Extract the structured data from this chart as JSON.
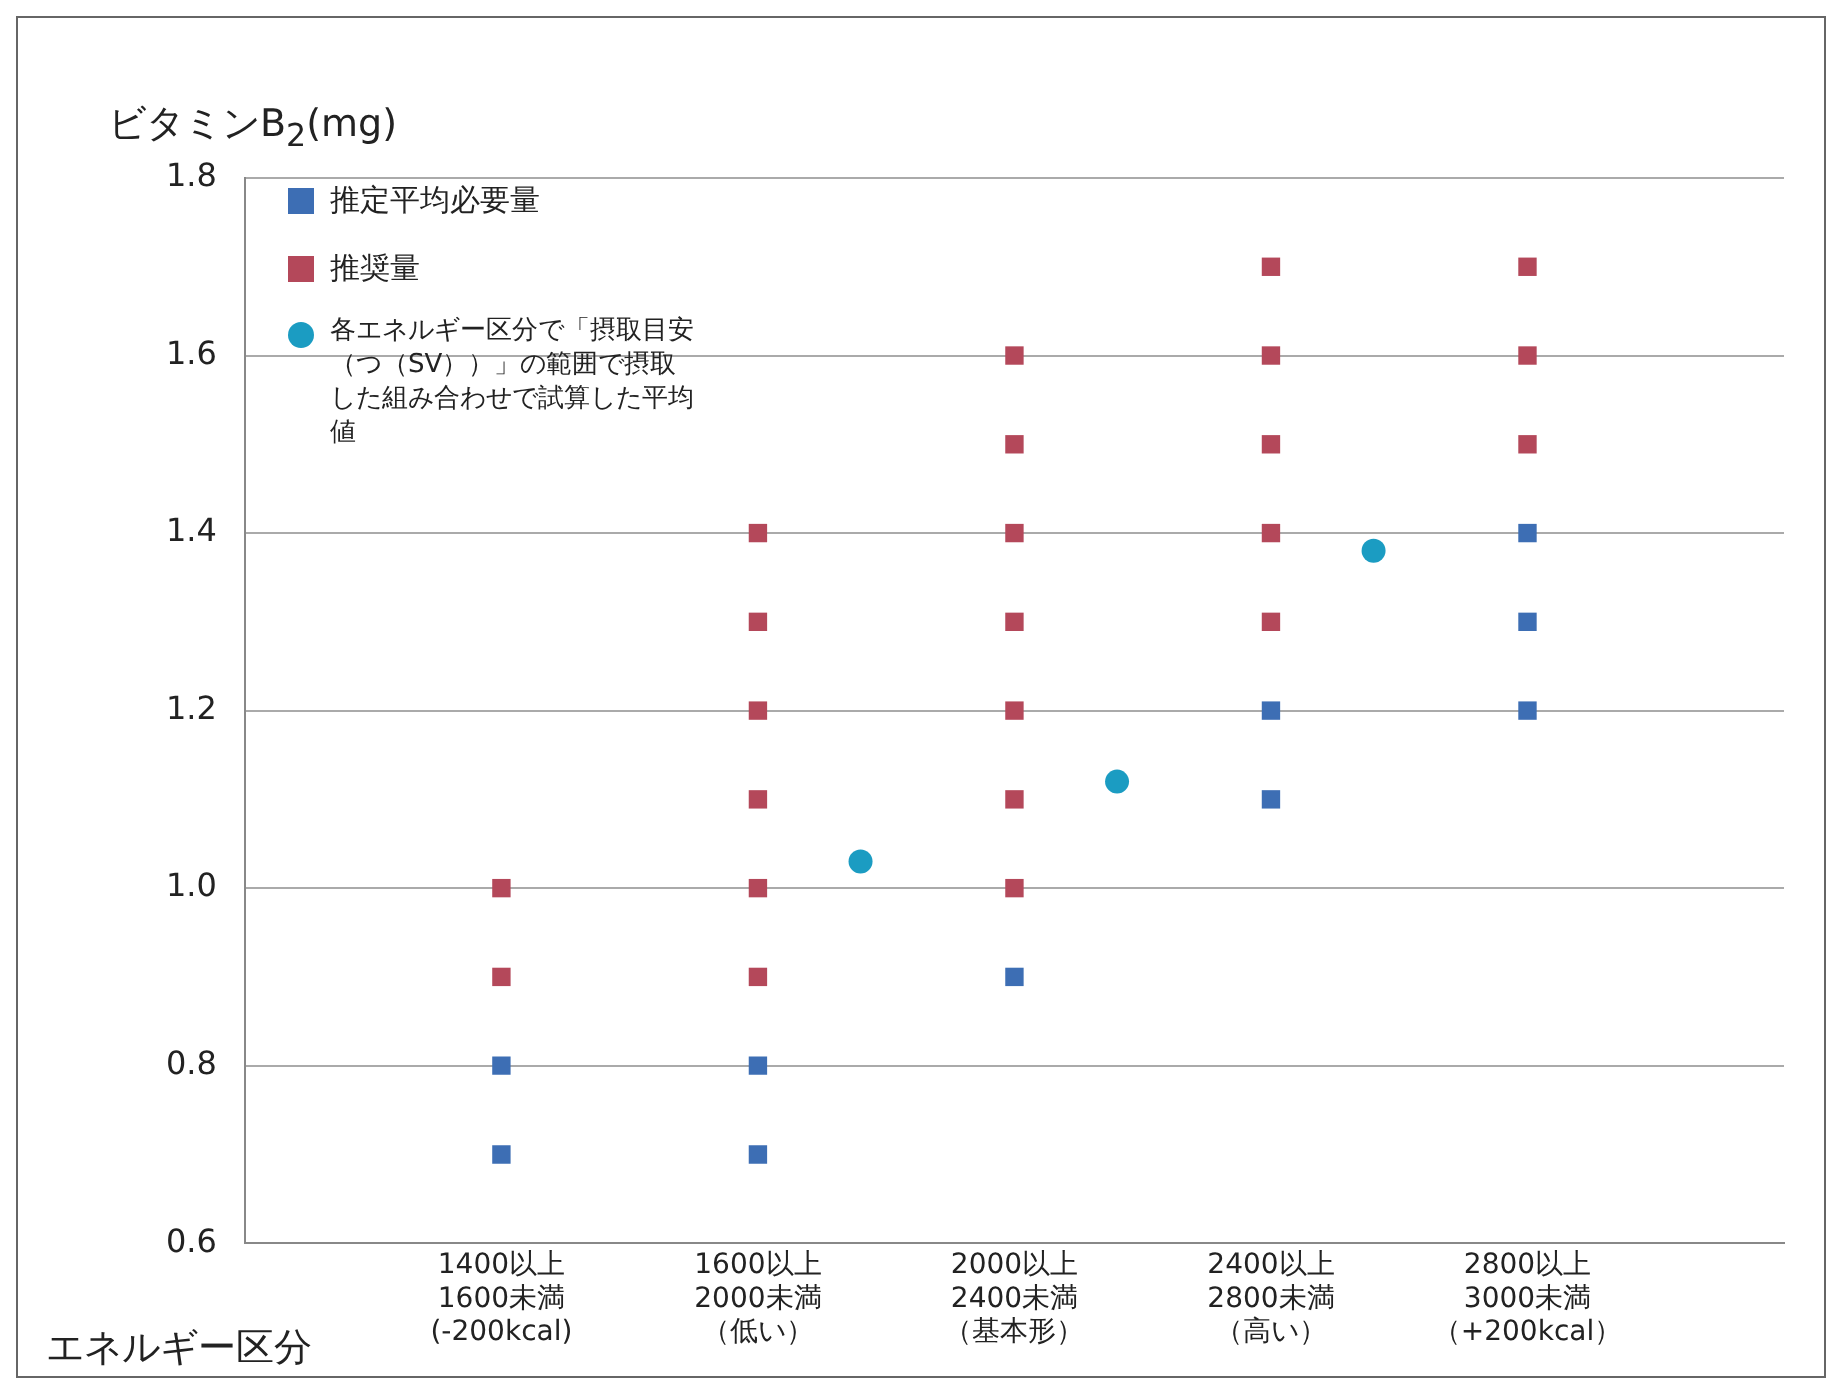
{
  "chart_data": {
    "type": "scatter",
    "ylabel": "ビタミンB$_{2}$(mg)",
    "xlabel": "エネルギー区分",
    "categories": [
      "1400以上\n1600未満\n(-200kcal)",
      "1600以上\n2000未満（低い）",
      "2000以上\n2400未満（基本形）",
      "2400以上\n2800未満（高い）",
      "2800以上\n3000未満（+200kcal）"
    ],
    "series": [
      {
        "name": "推定平均必要量",
        "color": "#3d6eb4",
        "marker": "square",
        "x": [
          "1400以上\n1600未満\n(-200kcal)",
          "1400以上\n1600未満\n(-200kcal)",
          "1600以上\n2000未満（低い）",
          "1600以上\n2000未満（低い）",
          "2000以上\n2400未満（基本形）",
          "2400以上\n2800未満（高い）",
          "2400以上\n2800未満（高い）",
          "2800以上\n3000未満（+200kcal）",
          "2800以上\n3000未満（+200kcal）",
          "2800以上\n3000未満（+200kcal）"
        ],
        "values": [
          0.7,
          0.8,
          0.7,
          0.8,
          0.9,
          1.1,
          1.2,
          1.2,
          1.3,
          1.4
        ]
      },
      {
        "name": "推奨量",
        "color": "#b4485a",
        "marker": "square",
        "x": [
          "1400以上\n1600未満\n(-200kcal)",
          "1400以上\n1600未満\n(-200kcal)",
          "1600以上\n2000未満（低い）",
          "1600以上\n2000未満（低い）",
          "1600以上\n2000未満（低い）",
          "1600以上\n2000未満（低い）",
          "1600以上\n2000未満（低い）",
          "1600以上\n2000未満（低い）",
          "2000以上\n2400未満（基本形）",
          "2000以上\n2400未満（基本形）",
          "2000以上\n2400未満（基本形）",
          "2000以上\n2400未満（基本形）",
          "2000以上\n2400未満（基本形）",
          "2000以上\n2400未満（基本形）",
          "2000以上\n2400未満（基本形）",
          "2400以上\n2800未満（高い）",
          "2400以上\n2800未満（高い）",
          "2400以上\n2800未満（高い）",
          "2400以上\n2800未満（高い）",
          "2400以上\n2800未満（高い）",
          "2800以上\n3000未満（+200kcal）",
          "2800以上\n3000未満（+200kcal）",
          "2800以上\n3000未満（+200kcal）"
        ],
        "values": [
          0.9,
          1.0,
          0.9,
          1.0,
          1.1,
          1.2,
          1.3,
          1.4,
          1.0,
          1.1,
          1.2,
          1.3,
          1.4,
          1.5,
          1.6,
          1.3,
          1.4,
          1.5,
          1.6,
          1.7,
          1.5,
          1.6,
          1.7
        ]
      },
      {
        "name": "各エネルギー区分で「摂取目安（つ（SV））」の範囲で摂取した組み合わせで試算した平均値",
        "color": "#1b9cc2",
        "marker": "circle",
        "x": [
          "1600以上\n2000未満（低い）",
          "2000以上\n2400未満（基本形）",
          "2400以上\n2800未満（高い）"
        ],
        "values": [
          1.03,
          1.12,
          1.38
        ]
      }
    ],
    "ylim": [
      0.6,
      1.8
    ],
    "yticks": [
      0.6,
      0.8,
      {
        "value": 1,
        "label": "1.0"
      },
      1.2,
      1.4,
      1.6,
      1.8
    ],
    "grid": "y",
    "legend": "top left"
  }
}
